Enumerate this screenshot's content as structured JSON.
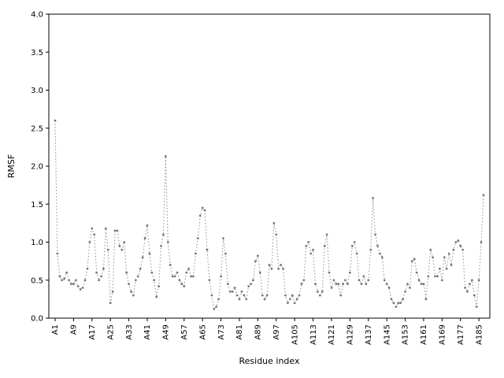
{
  "figure": {
    "background": "#ffffff",
    "axes_edge_color": "#000000"
  },
  "chart_data": {
    "type": "line",
    "line_style": "dotted",
    "markers": true,
    "line_color": "#8c8c8c",
    "marker_color": "#787878",
    "title": "",
    "xlabel": "Residue index",
    "ylabel": "RMSF",
    "ylim": [
      0.0,
      4.0
    ],
    "yticks": [
      0.0,
      0.5,
      1.0,
      1.5,
      2.0,
      2.5,
      3.0,
      3.5,
      4.0
    ],
    "grid": false,
    "legend": "none",
    "x_start_residue": 1,
    "xtick_positions": [
      1,
      9,
      17,
      25,
      33,
      41,
      49,
      57,
      65,
      73,
      81,
      89,
      97,
      105,
      113,
      121,
      129,
      137,
      145,
      153,
      161,
      169,
      177,
      185
    ],
    "xtick_labels": [
      "A1",
      "A9",
      "A17",
      "A25",
      "A33",
      "A41",
      "A49",
      "A57",
      "A65",
      "A73",
      "A81",
      "A89",
      "A97",
      "A105",
      "A113",
      "A121",
      "A129",
      "A137",
      "A145",
      "A153",
      "A161",
      "A169",
      "A177",
      "A185"
    ],
    "series": [
      {
        "name": "RMSF",
        "values": [
          2.6,
          0.85,
          0.55,
          0.5,
          0.52,
          0.6,
          0.5,
          0.45,
          0.45,
          0.5,
          0.42,
          0.38,
          0.4,
          0.5,
          0.65,
          1.0,
          1.18,
          1.1,
          0.6,
          0.5,
          0.55,
          0.65,
          1.18,
          0.9,
          0.2,
          0.35,
          1.15,
          1.15,
          0.95,
          0.9,
          1.0,
          0.6,
          0.45,
          0.35,
          0.3,
          0.5,
          0.55,
          0.65,
          0.8,
          1.05,
          1.22,
          0.85,
          0.6,
          0.5,
          0.28,
          0.42,
          0.95,
          1.1,
          2.13,
          1.0,
          0.7,
          0.55,
          0.55,
          0.6,
          0.5,
          0.45,
          0.42,
          0.6,
          0.65,
          0.55,
          0.55,
          0.85,
          1.05,
          1.35,
          1.45,
          1.42,
          0.9,
          0.5,
          0.3,
          0.12,
          0.15,
          0.25,
          0.55,
          1.05,
          0.85,
          0.45,
          0.35,
          0.35,
          0.4,
          0.3,
          0.25,
          0.35,
          0.3,
          0.25,
          0.42,
          0.45,
          0.5,
          0.75,
          0.82,
          0.6,
          0.3,
          0.25,
          0.3,
          0.7,
          0.65,
          1.25,
          1.1,
          0.65,
          0.7,
          0.65,
          0.3,
          0.2,
          0.25,
          0.3,
          0.2,
          0.25,
          0.3,
          0.45,
          0.5,
          0.95,
          1.0,
          0.85,
          0.9,
          0.45,
          0.35,
          0.3,
          0.35,
          0.95,
          1.1,
          0.6,
          0.4,
          0.5,
          0.45,
          0.45,
          0.3,
          0.45,
          0.5,
          0.45,
          0.6,
          0.95,
          1.0,
          0.85,
          0.5,
          0.45,
          0.55,
          0.45,
          0.5,
          0.9,
          1.58,
          1.1,
          0.95,
          0.85,
          0.8,
          0.5,
          0.45,
          0.4,
          0.25,
          0.2,
          0.15,
          0.2,
          0.2,
          0.25,
          0.35,
          0.45,
          0.4,
          0.75,
          0.78,
          0.6,
          0.5,
          0.45,
          0.45,
          0.25,
          0.55,
          0.9,
          0.8,
          0.55,
          0.55,
          0.65,
          0.5,
          0.8,
          0.65,
          0.85,
          0.7,
          0.9,
          1.0,
          1.02,
          0.95,
          0.9,
          0.4,
          0.35,
          0.45,
          0.5,
          0.3,
          0.15,
          0.5,
          1.0,
          1.62
        ]
      }
    ]
  }
}
